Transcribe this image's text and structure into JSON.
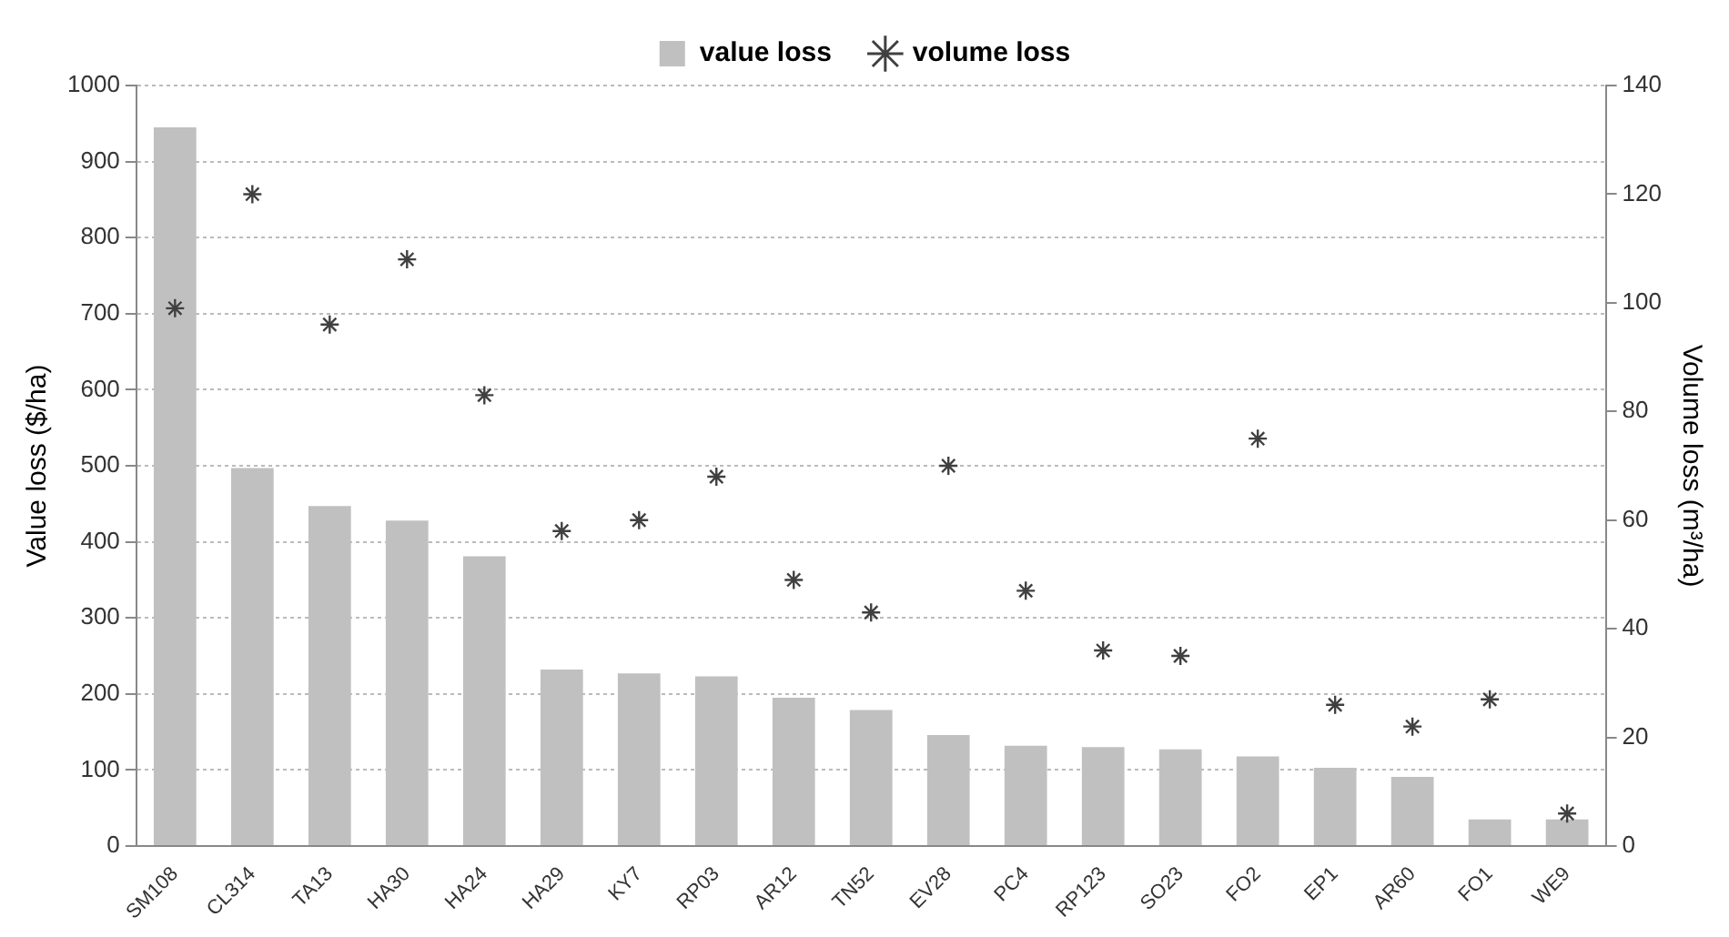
{
  "chart_data": {
    "type": "bar",
    "ylabel": "Value loss ($/ha)",
    "y2label": "Volume loss (m³/ha)",
    "categories": [
      "SM108",
      "CL314",
      "TA13",
      "HA30",
      "HA24",
      "HA29",
      "KY7",
      "RP03",
      "AR12",
      "TN52",
      "EV28",
      "PC4",
      "RP123",
      "SO23",
      "FO2",
      "EP1",
      "AR60",
      "FO1",
      "WE9"
    ],
    "series": [
      {
        "name": "value loss",
        "color": "#c0c0c0",
        "values": [
          945,
          497,
          447,
          428,
          381,
          232,
          227,
          223,
          195,
          179,
          146,
          132,
          130,
          127,
          118,
          103,
          91,
          35,
          35
        ]
      },
      {
        "name": "volume loss",
        "type": "scatter",
        "axis": "y2",
        "color": "#404040",
        "marker": "cross",
        "values": [
          99,
          120,
          96,
          108,
          83,
          58,
          60,
          68,
          49,
          43,
          70,
          47,
          36,
          35,
          75,
          26,
          22,
          27,
          6
        ]
      }
    ],
    "ylim": [
      0,
      1000
    ],
    "yticks": [
      0,
      100,
      200,
      300,
      400,
      500,
      600,
      700,
      800,
      900,
      1000
    ],
    "y2lim": [
      0,
      140
    ],
    "y2ticks": [
      0,
      20,
      40,
      60,
      80,
      100,
      120,
      140
    ],
    "grid": "y",
    "legend": "top"
  }
}
